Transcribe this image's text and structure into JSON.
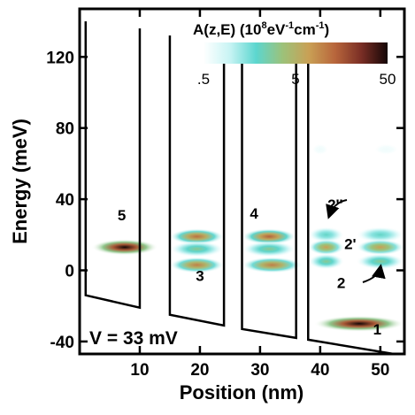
{
  "chart_data": {
    "type": "heatmap",
    "title": "",
    "xlabel": "Position (nm)",
    "ylabel": "Energy (meV)",
    "xlim": [
      0,
      54
    ],
    "ylim": [
      -47,
      147
    ],
    "x_ticks": [
      10,
      20,
      30,
      40,
      50
    ],
    "y_ticks": [
      -40,
      0,
      40,
      80,
      120
    ],
    "x_tick_labels": [
      "10",
      "20",
      "30",
      "40",
      "50"
    ],
    "y_tick_labels": [
      "-40",
      "0",
      "40",
      "80",
      "120"
    ],
    "bias_label": "V = 33 mV",
    "colorbar": {
      "title_main": "A(z,E) (10",
      "title_sup1": "8",
      "title_mid": "eV",
      "title_sup2": "-1",
      "title_mid2": "cm",
      "title_sup3": "-1",
      "title_end": ")",
      "scale": "log",
      "range": [
        0.5,
        50
      ],
      "tick_labels": [
        ".5",
        "5",
        "50"
      ],
      "colors": [
        "#ffffff",
        "#c8f4f4",
        "#5cd6cf",
        "#9cc27a",
        "#c9a055",
        "#b8663c",
        "#7a2e25",
        "#140606"
      ]
    },
    "potential_profile": {
      "segments": [
        {
          "x": [
            1,
            1,
            10,
            10
          ],
          "y": [
            140,
            -14,
            -21,
            136
          ]
        },
        {
          "x": [
            15,
            15,
            24,
            24
          ],
          "y": [
            132,
            -25,
            -31,
            128
          ]
        },
        {
          "x": [
            27,
            27,
            36,
            36
          ],
          "y": [
            125,
            -33,
            -38,
            120
          ]
        },
        {
          "x": [
            38,
            38,
            54
          ],
          "y": [
            118,
            -39,
            -48
          ]
        }
      ]
    },
    "states": [
      {
        "label": "5",
        "x": [
          2,
          13
        ],
        "energy": 13,
        "peak": 50
      },
      {
        "label": "4",
        "x": [
          15,
          24
        ],
        "energy": 19,
        "peak": 12
      },
      {
        "label": "4",
        "x": [
          27,
          36
        ],
        "energy": 19,
        "peak": 14
      },
      {
        "label": "3",
        "x": [
          15,
          24
        ],
        "energy": 3,
        "peak": 10
      },
      {
        "label": "3",
        "x": [
          27,
          37
        ],
        "energy": 3,
        "peak": 10
      },
      {
        "label": "",
        "x": [
          15,
          24
        ],
        "energy": 12,
        "peak": 3
      },
      {
        "label": "",
        "x": [
          27,
          36
        ],
        "energy": 12,
        "peak": 3
      },
      {
        "label": "2''",
        "x": [
          38,
          44
        ],
        "energy": 20,
        "peak": 2
      },
      {
        "label": "2''",
        "x": [
          46,
          54
        ],
        "energy": 20,
        "peak": 2
      },
      {
        "label": "2'",
        "x": [
          38,
          44
        ],
        "energy": 13,
        "peak": 7
      },
      {
        "label": "2'",
        "x": [
          46,
          54
        ],
        "energy": 13,
        "peak": 7
      },
      {
        "label": "2",
        "x": [
          38,
          44
        ],
        "energy": 5,
        "peak": 3
      },
      {
        "label": "2",
        "x": [
          46,
          54
        ],
        "energy": 5,
        "peak": 3
      },
      {
        "label": "1",
        "x": [
          39,
          54
        ],
        "energy": -30,
        "peak": 50
      },
      {
        "label": "",
        "x": [
          38,
          42
        ],
        "energy": 68,
        "peak": 0.6
      },
      {
        "label": "",
        "x": [
          48,
          54
        ],
        "energy": 68,
        "peak": 0.6
      }
    ],
    "annotations": [
      {
        "text": "5",
        "x": 7,
        "y": 28
      },
      {
        "text": "4",
        "x": 29,
        "y": 29
      },
      {
        "text": "3",
        "x": 20,
        "y": -6
      },
      {
        "text": "2''",
        "x": 42.5,
        "y": 34
      },
      {
        "text": "2'",
        "x": 45,
        "y": 12
      },
      {
        "text": "2",
        "x": 43.5,
        "y": -10
      },
      {
        "text": "1",
        "x": 49.5,
        "y": -36
      }
    ]
  }
}
